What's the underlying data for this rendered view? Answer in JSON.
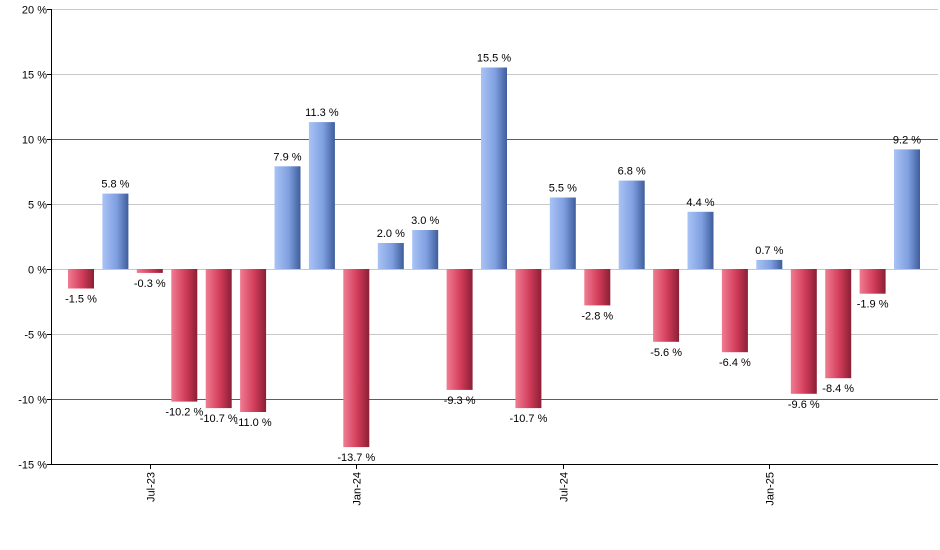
{
  "chart_data": {
    "type": "bar",
    "title": "",
    "xlabel": "",
    "ylabel": "",
    "ylim": [
      -15,
      20
    ],
    "yticks": [
      -15,
      -10,
      -5,
      0,
      5,
      10,
      15,
      20
    ],
    "ytick_labels": [
      "-15 %",
      "-10 %",
      "-5 %",
      "0 %",
      "5 %",
      "10 %",
      "15 %",
      "20 %"
    ],
    "grid": true,
    "highlight_lines": [
      10,
      -10
    ],
    "values": [
      -1.5,
      5.8,
      -0.3,
      -10.2,
      -10.7,
      -11.0,
      7.9,
      11.3,
      -13.7,
      2.0,
      3.0,
      -9.3,
      15.5,
      -10.7,
      5.5,
      -2.8,
      6.8,
      -5.6,
      4.4,
      -6.4,
      0.7,
      -9.6,
      -8.4,
      -1.9,
      9.2
    ],
    "value_labels": [
      "-1.5 %",
      "5.8 %",
      "-0.3 %",
      "-10.2 %",
      "-10.7 %",
      "-11.0 %",
      "7.9 %",
      "11.3 %",
      "-13.7 %",
      "2.0 %",
      "3.0 %",
      "-9.3 %",
      "15.5 %",
      "-10.7 %",
      "5.5 %",
      "-2.8 %",
      "6.8 %",
      "-5.6 %",
      "4.4 %",
      "-6.4 %",
      "0.7 %",
      "-9.6 %",
      "-8.4 %",
      "-1.9 %",
      "9.2 %"
    ],
    "x_tick_labels": [
      {
        "label": "Jul-23",
        "bar_index": 2
      },
      {
        "label": "Jan-24",
        "bar_index": 8
      },
      {
        "label": "Jul-24",
        "bar_index": 14
      },
      {
        "label": "Jan-25",
        "bar_index": 20
      }
    ],
    "colors": {
      "positive": "#7f9fe0",
      "negative": "#d23c5a",
      "grid": "#c8c8c8",
      "highlight_line": "#2e7d32",
      "axis": "#000000"
    }
  }
}
